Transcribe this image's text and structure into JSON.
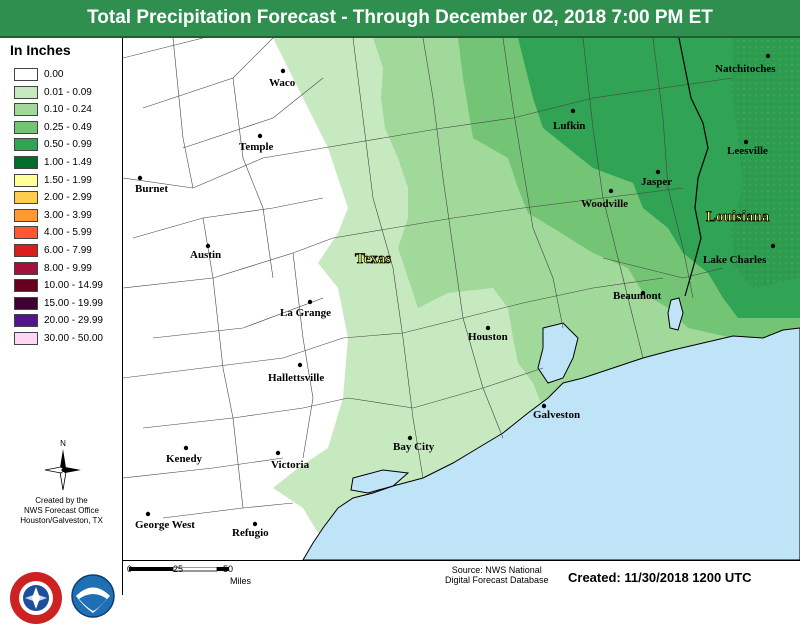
{
  "title": "Total Precipitation Forecast - Through December 02, 2018 7:00 PM ET",
  "legend": {
    "title": "In Inches",
    "items": [
      {
        "label": "0.00",
        "color": "#ffffff"
      },
      {
        "label": "0.01 - 0.09",
        "color": "#c7e9c0"
      },
      {
        "label": "0.10 - 0.24",
        "color": "#a1d99b"
      },
      {
        "label": "0.25 - 0.49",
        "color": "#74c476"
      },
      {
        "label": "0.50 - 0.99",
        "color": "#31a354"
      },
      {
        "label": "1.00 - 1.49",
        "color": "#006d2c"
      },
      {
        "label": "1.50 - 1.99",
        "color": "#ffff99"
      },
      {
        "label": "2.00 - 2.99",
        "color": "#ffcc4d"
      },
      {
        "label": "3.00 - 3.99",
        "color": "#ff9933"
      },
      {
        "label": "4.00 - 5.99",
        "color": "#ff5533"
      },
      {
        "label": "6.00 - 7.99",
        "color": "#dd1c1c"
      },
      {
        "label": "8.00 - 9.99",
        "color": "#a50f3c"
      },
      {
        "label": "10.00 - 14.99",
        "color": "#67001f"
      },
      {
        "label": "15.00 - 19.99",
        "color": "#3f0033"
      },
      {
        "label": "20.00 - 29.99",
        "color": "#54158a"
      },
      {
        "label": "30.00 - 50.00",
        "color": "#ffd6f5"
      }
    ]
  },
  "north_label": "N",
  "credit": [
    "Created by the",
    "NWS Forecast Office",
    "Houston/Galveston, TX"
  ],
  "states": [
    "Texas",
    "Louisiana"
  ],
  "cities": [
    "Waco",
    "Temple",
    "Burnet",
    "Austin",
    "La Grange",
    "Hallettsville",
    "Kenedy",
    "Victoria",
    "George West",
    "Refugio",
    "Bay City",
    "Houston",
    "Galveston",
    "Beaumont",
    "Lufkin",
    "Woodville",
    "Jasper",
    "Natchitoches",
    "Leesville",
    "Lake Charles"
  ],
  "scale": {
    "ticks": [
      "0",
      "25",
      "50"
    ],
    "units": "Miles"
  },
  "source": [
    "Source: NWS National",
    "Digital Forecast Database"
  ],
  "created": "Created: 11/30/2018 1200 UTC",
  "colors": {
    "title_bar": "#2f8f4f",
    "water": "#bfe3f7"
  }
}
